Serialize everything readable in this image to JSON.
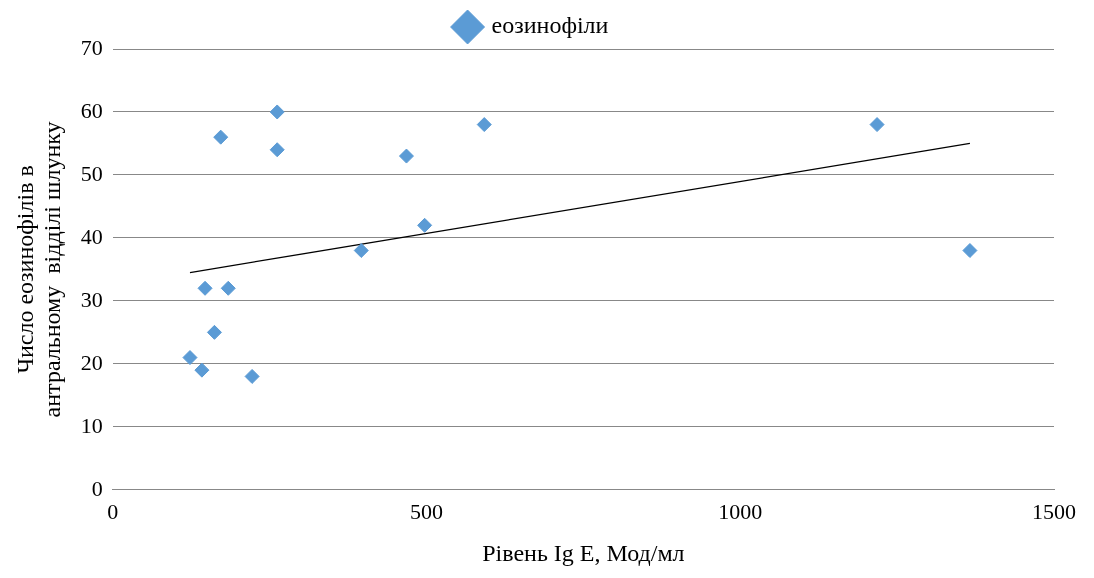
{
  "chart_data": {
    "type": "scatter",
    "xlabel": "Рівень Ig E, Мод/мл",
    "ylabel": "Число еозинофілів в\nантральному  відділі шлунку",
    "xlim": [
      0,
      1500
    ],
    "xticks": [
      0,
      500,
      1000,
      1500
    ],
    "ylim": [
      0,
      70
    ],
    "yticks": [
      0,
      10,
      20,
      30,
      40,
      50,
      60,
      70
    ],
    "grid": "y",
    "legend": "top",
    "marker": "diamond",
    "series": [
      {
        "name": "еозинофіли",
        "color": "#5b9bd5",
        "x": [
          123,
          142,
          147,
          162,
          172,
          184,
          222,
          262,
          262,
          396,
          468,
          497,
          592,
          1218,
          1366
        ],
        "values": [
          21,
          19,
          32,
          25,
          56,
          32,
          18,
          60,
          54,
          38,
          53,
          42,
          58,
          58,
          38
        ]
      },
      {
        "type": "line",
        "color": "#000000",
        "x": [
          123,
          1366
        ],
        "values": [
          34.5,
          55
        ],
        "marker": "none"
      }
    ]
  }
}
